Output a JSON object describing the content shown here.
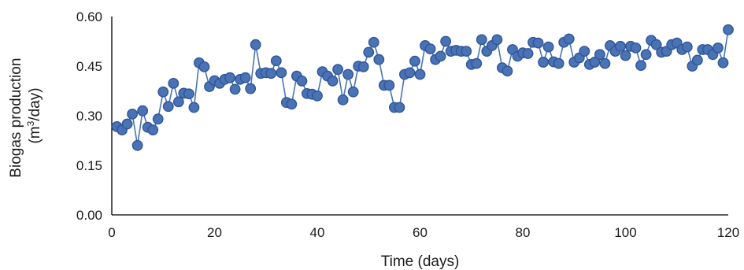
{
  "chart_data": {
    "type": "line",
    "xlabel": "Time (days)",
    "ylabel_line1": "Biogas production",
    "ylabel_line2_prefix": "(m",
    "ylabel_line2_sup": "3",
    "ylabel_line2_suffix": "/day)",
    "xlim": [
      0,
      120
    ],
    "ylim": [
      0,
      0.6
    ],
    "xticks": [
      0,
      20,
      40,
      60,
      80,
      100,
      120
    ],
    "yticks": [
      0,
      0.15,
      0.3,
      0.45,
      0.6
    ],
    "xtick_labels": [
      "0",
      "20",
      "40",
      "60",
      "80",
      "100",
      "120"
    ],
    "ytick_labels": [
      "0.00",
      "0.15",
      "0.30",
      "0.45",
      "0.60"
    ],
    "grid": false,
    "series_color": "#4a73b5",
    "series_edge_color": "#2f5597",
    "series": [
      {
        "x": [
          1,
          2,
          3,
          4,
          5,
          6,
          7,
          8,
          9,
          10,
          11,
          12,
          13,
          14,
          15,
          16,
          17,
          18,
          19,
          20,
          21,
          22,
          23,
          24,
          25,
          26,
          27,
          28,
          29,
          30,
          31,
          32,
          33,
          34,
          35,
          36,
          37,
          38,
          39,
          40,
          41,
          42,
          43,
          44,
          45,
          46,
          47,
          48,
          49,
          50,
          51,
          52,
          53,
          54,
          55,
          56,
          57,
          58,
          59,
          60,
          61,
          62,
          63,
          64,
          65,
          66,
          67,
          68,
          69,
          70,
          71,
          72,
          73,
          74,
          75,
          76,
          77,
          78,
          79,
          80,
          81,
          82,
          83,
          84,
          85,
          86,
          87,
          88,
          89,
          90,
          91,
          92,
          93,
          94,
          95,
          96,
          97,
          98,
          99,
          100,
          101,
          102,
          103,
          104,
          105,
          106,
          107,
          108,
          109,
          110,
          111,
          112,
          113,
          114,
          115,
          116,
          117,
          118,
          119,
          120
        ],
        "values": [
          0.267,
          0.257,
          0.275,
          0.305,
          0.21,
          0.315,
          0.265,
          0.257,
          0.29,
          0.372,
          0.328,
          0.398,
          0.342,
          0.368,
          0.366,
          0.325,
          0.46,
          0.448,
          0.388,
          0.406,
          0.398,
          0.41,
          0.415,
          0.38,
          0.41,
          0.415,
          0.382,
          0.515,
          0.428,
          0.43,
          0.428,
          0.466,
          0.43,
          0.34,
          0.335,
          0.42,
          0.405,
          0.367,
          0.365,
          0.36,
          0.433,
          0.42,
          0.405,
          0.44,
          0.348,
          0.425,
          0.372,
          0.45,
          0.448,
          0.492,
          0.522,
          0.47,
          0.392,
          0.392,
          0.325,
          0.325,
          0.425,
          0.43,
          0.465,
          0.425,
          0.512,
          0.502,
          0.47,
          0.48,
          0.525,
          0.495,
          0.498,
          0.495,
          0.495,
          0.455,
          0.458,
          0.53,
          0.495,
          0.512,
          0.53,
          0.445,
          0.435,
          0.5,
          0.48,
          0.49,
          0.488,
          0.522,
          0.52,
          0.462,
          0.508,
          0.463,
          0.458,
          0.522,
          0.532,
          0.462,
          0.475,
          0.495,
          0.455,
          0.462,
          0.485,
          0.458,
          0.512,
          0.495,
          0.51,
          0.482,
          0.51,
          0.505,
          0.452,
          0.485,
          0.528,
          0.515,
          0.492,
          0.495,
          0.515,
          0.52,
          0.5,
          0.508,
          0.45,
          0.468,
          0.5,
          0.5,
          0.485,
          0.505,
          0.46,
          0.56
        ]
      }
    ]
  }
}
